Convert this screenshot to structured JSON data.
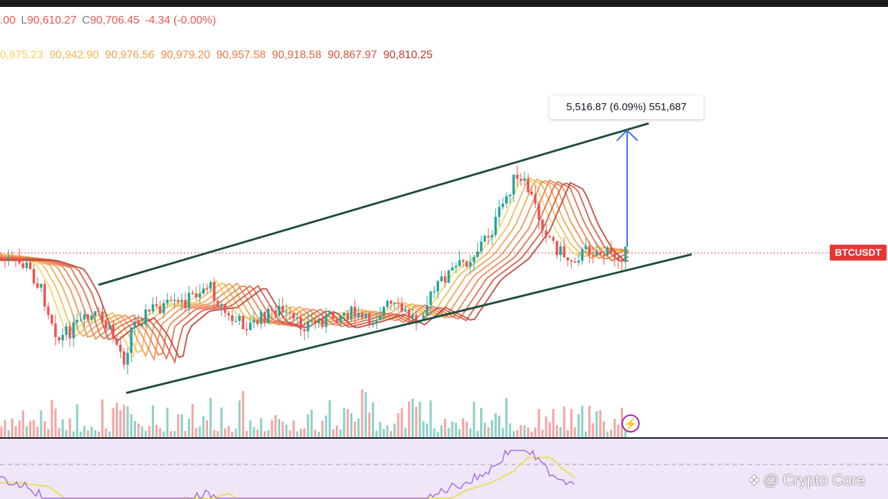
{
  "legend": {
    "open_partial": ".00",
    "low_label": "L",
    "low_value": "90,610.27",
    "close_label": "C",
    "close_value": "90,706.45",
    "change": "-4.34 (-0.00%)"
  },
  "ema_values": [
    {
      "text": "0,875.23",
      "color": "#f6d35c"
    },
    {
      "text": "90,942.90",
      "color": "#f2b64e"
    },
    {
      "text": "90,976.56",
      "color": "#f0a04a"
    },
    {
      "text": "90,979.20",
      "color": "#ee8c48"
    },
    {
      "text": "90,957.58",
      "color": "#ea7a45"
    },
    {
      "text": "90,918.58",
      "color": "#e06540"
    },
    {
      "text": "90,867.97",
      "color": "#d4503a"
    },
    {
      "text": "90,810.25",
      "color": "#b83a2e"
    }
  ],
  "measure_label": "5,516.87 (6.09%) 551,687",
  "symbol_tag": "BTCUSDT",
  "watermark": "@ Crypto Core",
  "colors": {
    "up": "#26a69a",
    "down": "#ef5350",
    "channel": "#1f4e3d",
    "measure_arrow": "#3d6bf2",
    "price_line": "#e53935",
    "rsi": "#a66ee0",
    "rsi_ma": "#e8e05a",
    "rsi_bg": "#efe6f7"
  },
  "icons": {
    "alert": "lightning-bolt-icon",
    "watermark": "diamond-logo-icon"
  }
}
